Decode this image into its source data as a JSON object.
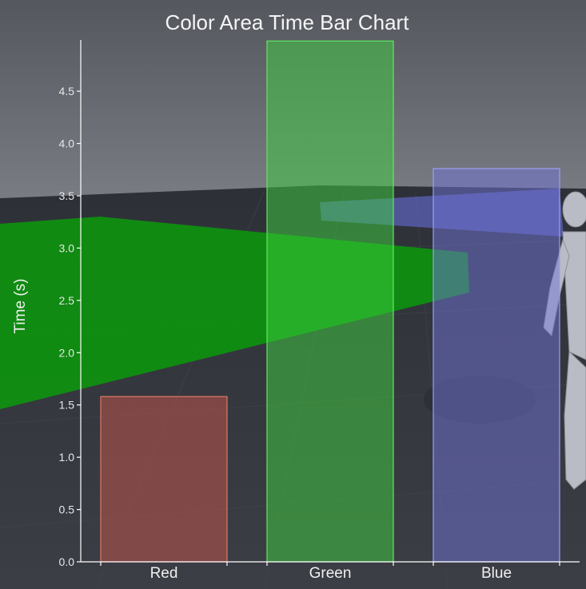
{
  "chart_data": {
    "type": "bar",
    "title": "Color Area Time Bar Chart",
    "xlabel": "",
    "ylabel": "Time (s)",
    "categories": [
      "Red",
      "Green",
      "Blue"
    ],
    "values": [
      1.58,
      4.98,
      3.76
    ],
    "ylim": [
      0,
      4.99
    ],
    "yticks": [
      "0.0",
      "0.5",
      "1.0",
      "1.5",
      "2.0",
      "2.5",
      "3.0",
      "3.5",
      "4.0",
      "4.5"
    ],
    "bar_colors": [
      "#c8564a",
      "#3ed23e",
      "#6f74d6"
    ],
    "bar_edge_colors": [
      "#e07a60",
      "#5fe85f",
      "#9aa0f0"
    ],
    "grid": false,
    "legend": false
  },
  "scene": {
    "sky_color": "#6e7078",
    "floor_color": "#34363e",
    "overlay_green": "#0a9a0a",
    "overlay_blue": "#5c62b8"
  }
}
